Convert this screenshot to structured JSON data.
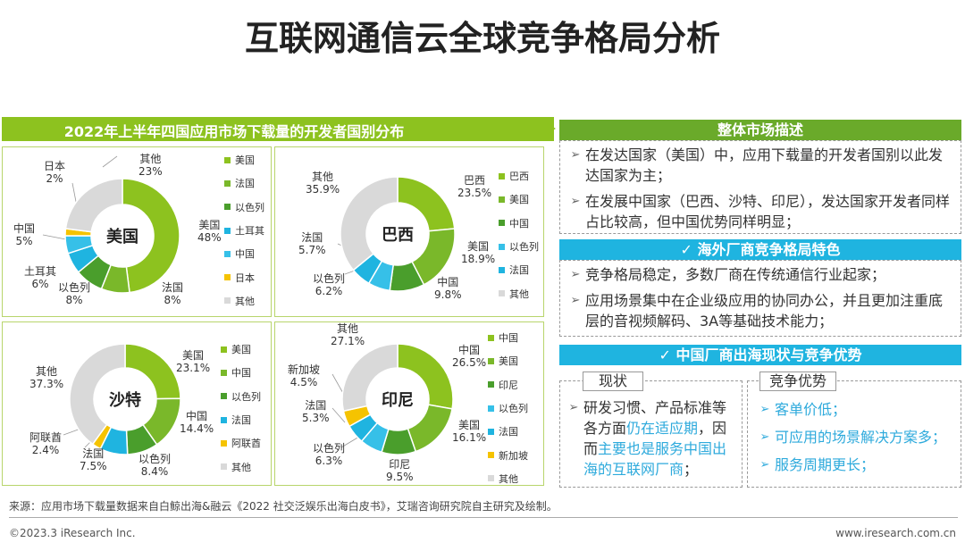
{
  "title": "互联网通信云全球竞争格局分析",
  "left_header": "2022年上半年四国应用市场下载量的开发者国别分布",
  "colors": {
    "us": "#8dc21f",
    "br": "#8dc21f",
    "green_mid": "#7ab82a",
    "green_dark": "#4a9e2c",
    "cyan": "#1fb4e0",
    "yellow": "#f5c300",
    "grey": "#d9d9d9",
    "blue_bar": "#1fb4e0",
    "green_bar": "#6aaa2a"
  },
  "chart_data": [
    {
      "type": "pie",
      "center_label": "美国",
      "slices": [
        {
          "name": "美国",
          "value": 48,
          "label": "48%"
        },
        {
          "name": "法国",
          "value": 8,
          "label": "8%"
        },
        {
          "name": "以色列",
          "value": 8,
          "label": "8%"
        },
        {
          "name": "土耳其",
          "value": 6,
          "label": "6%"
        },
        {
          "name": "中国",
          "value": 5,
          "label": "5%"
        },
        {
          "name": "日本",
          "value": 2,
          "label": "2%"
        },
        {
          "name": "其他",
          "value": 23,
          "label": "23%"
        }
      ],
      "legend": [
        "美国",
        "法国",
        "以色列",
        "土耳其",
        "中国",
        "日本",
        "其他"
      ]
    },
    {
      "type": "pie",
      "center_label": "巴西",
      "slices": [
        {
          "name": "巴西",
          "value": 23.5,
          "label": "23.5%"
        },
        {
          "name": "美国",
          "value": 18.9,
          "label": "18.9%"
        },
        {
          "name": "中国",
          "value": 9.8,
          "label": "9.8%"
        },
        {
          "name": "以色列",
          "value": 6.2,
          "label": "6.2%"
        },
        {
          "name": "法国",
          "value": 5.7,
          "label": "5.7%"
        },
        {
          "name": "其他",
          "value": 35.9,
          "label": "35.9%"
        }
      ],
      "legend": [
        "巴西",
        "美国",
        "中国",
        "以色列",
        "法国",
        "其他"
      ]
    },
    {
      "type": "pie",
      "center_label": "沙特",
      "slices": [
        {
          "name": "美国",
          "value": 23.1,
          "label": "23.1%"
        },
        {
          "name": "中国",
          "value": 14.4,
          "label": "14.4%"
        },
        {
          "name": "以色列",
          "value": 8.4,
          "label": "8.4%"
        },
        {
          "name": "法国",
          "value": 7.5,
          "label": "7.5%"
        },
        {
          "name": "阿联酋",
          "value": 2.4,
          "label": "2.4%"
        },
        {
          "name": "其他",
          "value": 37.3,
          "label": "37.3%"
        }
      ],
      "legend": [
        "美国",
        "中国",
        "以色列",
        "法国",
        "阿联酋",
        "其他"
      ]
    },
    {
      "type": "pie",
      "center_label": "印尼",
      "slices": [
        {
          "name": "中国",
          "value": 26.5,
          "label": "26.5%"
        },
        {
          "name": "美国",
          "value": 16.1,
          "label": "16.1%"
        },
        {
          "name": "印尼",
          "value": 9.5,
          "label": "9.5%"
        },
        {
          "name": "以色列",
          "value": 6.3,
          "label": "6.3%"
        },
        {
          "name": "法国",
          "value": 5.3,
          "label": "5.3%"
        },
        {
          "name": "新加坡",
          "value": 4.5,
          "label": "4.5%"
        },
        {
          "name": "其他",
          "value": 27.1,
          "label": "27.1%"
        }
      ],
      "legend": [
        "中国",
        "美国",
        "印尼",
        "以色列",
        "法国",
        "新加坡",
        "其他"
      ]
    }
  ],
  "overall": {
    "title": "整体市场描述",
    "items": [
      "在发达国家（美国）中，应用下载量的开发者国别以此发达国家为主；",
      "在发展中国家（巴西、沙特、印尼），发达国家开发者同样占比较高，但中国优势同样明显；"
    ]
  },
  "overseas": {
    "title": "✓ 海外厂商竞争格局特色",
    "items": [
      "竞争格局稳定，多数厂商在传统通信行业起家；",
      "应用场景集中在企业级应用的协同办公，并且更加注重底层的音视频解码、3A等基础技术能力；"
    ]
  },
  "china": {
    "title": "✓ 中国厂商出海现状与竞争优势",
    "status_label": "现状",
    "status_parts": [
      "研发习惯、产品标准等各方面",
      "仍在适应期",
      "，因而",
      "主要也是服务中国出海的互联网厂商",
      "；"
    ],
    "adv_label": "竞争优势",
    "adv_items": [
      "客单价低；",
      "可应用的场景解决方案多；",
      "服务周期更长；"
    ]
  },
  "footnote": "来源：应用市场下载量数据来自白鲸出海&融云《2022 社交泛娱乐出海白皮书》，艾瑞咨询研究院自主研究及绘制。",
  "copyright": "©2023.3 iResearch Inc.",
  "site": "www.iresearch.com.cn"
}
